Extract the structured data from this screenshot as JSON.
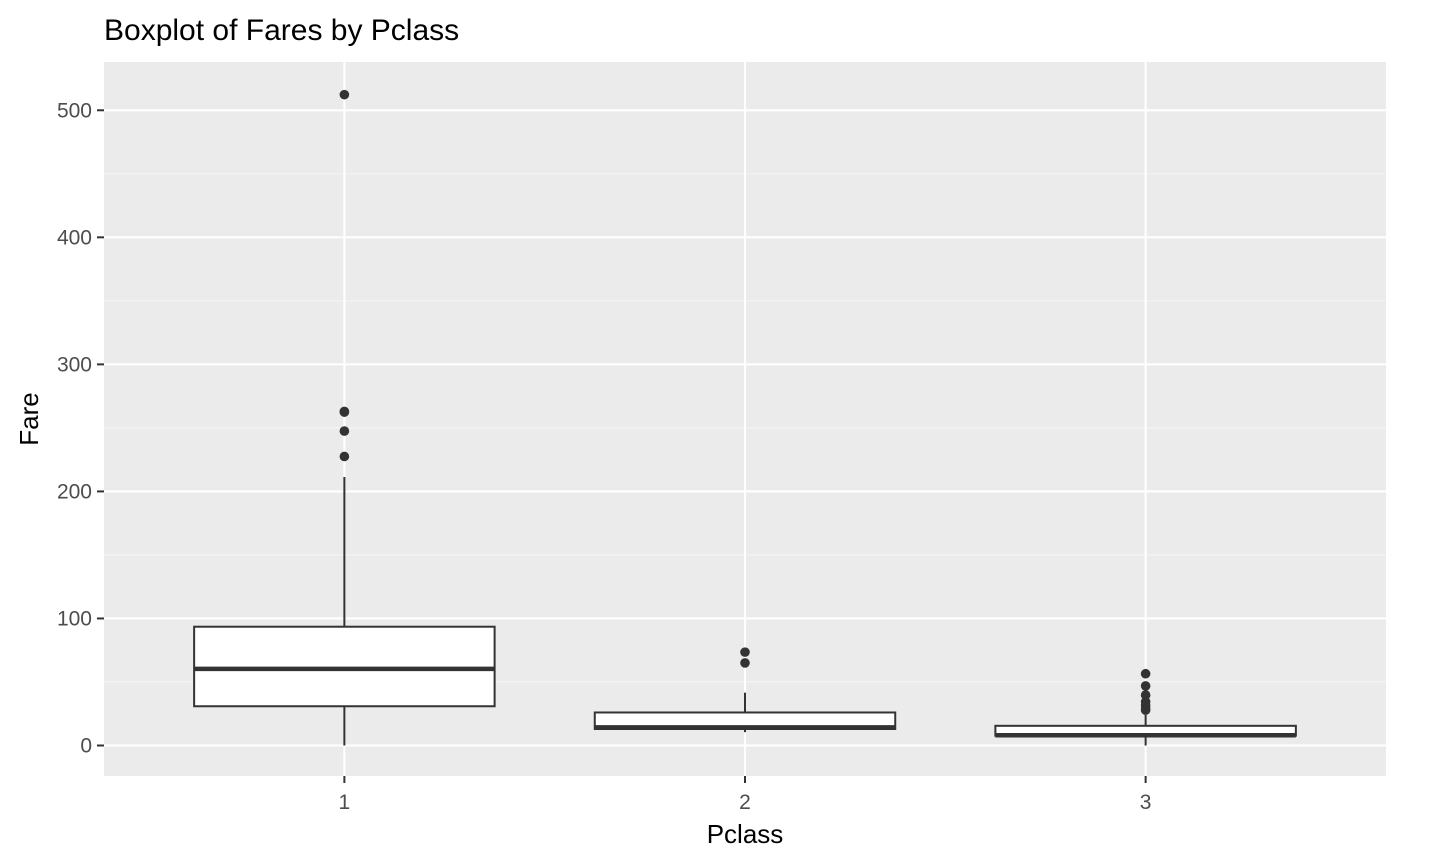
{
  "chart_data": {
    "type": "boxplot",
    "title": "Boxplot of Fares by Pclass",
    "xlabel": "Pclass",
    "ylabel": "Fare",
    "ylim": [
      -24,
      538
    ],
    "yticks": [
      0,
      100,
      200,
      300,
      400,
      500
    ],
    "yminor": [
      50,
      150,
      250,
      350,
      450
    ],
    "grid": true,
    "categories": [
      "1",
      "2",
      "3"
    ],
    "boxes": [
      {
        "category": "1",
        "whisker_low": 0,
        "q1": 30.9,
        "median": 60.3,
        "q3": 93.5,
        "whisker_high": 211.3,
        "outliers": [
          512.3,
          263,
          262.4,
          247.5,
          227.5
        ]
      },
      {
        "category": "2",
        "whisker_low": 10.5,
        "q1": 13,
        "median": 14.3,
        "q3": 26,
        "whisker_high": 41.6,
        "outliers": [
          73.5,
          65
        ]
      },
      {
        "category": "3",
        "whisker_low": 0,
        "q1": 7.75,
        "median": 8.05,
        "q3": 15.5,
        "whisker_high": 24.2,
        "outliers": [
          56.5,
          46.9,
          39.7,
          34.4,
          31.4,
          29.1,
          27.9
        ]
      }
    ],
    "colors": {
      "panel_background": "#ebebeb",
      "grid_major": "#ffffff",
      "grid_minor": "#f5f5f5",
      "box_fill": "#ffffff",
      "box_stroke": "#333333",
      "outlier": "#333333",
      "tick_text": "#4d4d4d",
      "tick_mark": "#333333"
    }
  }
}
